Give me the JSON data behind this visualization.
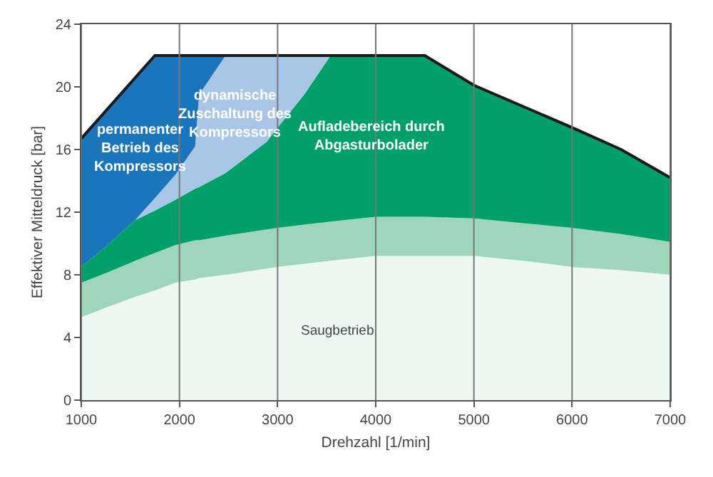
{
  "chart_data": {
    "type": "area",
    "stacked": true,
    "xlabel": "Drehzahl [1/min]",
    "ylabel": "Effektiver Mitteldruck [bar]",
    "xlim": [
      1000,
      7000
    ],
    "xticks": [
      1000,
      2000,
      3000,
      4000,
      5000,
      6000,
      7000
    ],
    "ylim": [
      0,
      24
    ],
    "yticks": [
      0,
      4,
      8,
      12,
      16,
      20,
      24
    ],
    "grid": "x",
    "legend": false,
    "x": [
      1000,
      1250,
      1550,
      1750,
      1960,
      2160,
      2200,
      2470,
      2890,
      3000,
      3270,
      3540,
      4000,
      4500,
      5000,
      5500,
      6000,
      6500,
      7000
    ],
    "series": [
      {
        "name": "Saugbetrieb",
        "color": "#eef8f3",
        "values": [
          5.3,
          5.9,
          6.6,
          7.0,
          7.5,
          7.7,
          7.8,
          8.0,
          8.4,
          8.5,
          8.7,
          8.9,
          9.2,
          9.2,
          9.2,
          8.9,
          8.5,
          8.3,
          8.0
        ]
      },
      {
        "color": "#9fd6bb",
        "values": [
          2.2,
          2.2,
          2.3,
          2.4,
          2.4,
          2.5,
          2.4,
          2.5,
          2.5,
          2.5,
          2.5,
          2.5,
          2.5,
          2.5,
          2.4,
          2.4,
          2.5,
          2.3,
          2.1
        ]
      },
      {
        "name": "Aufladebereich durch\nAbgasturbolader",
        "color": "#00a06a",
        "values": [
          1.0,
          1.7,
          2.6,
          2.7,
          2.9,
          3.3,
          3.4,
          4.0,
          5.6,
          6.4,
          8.3,
          10.6,
          10.3,
          10.3,
          8.5,
          7.5,
          6.4,
          5.4,
          4.1
        ]
      },
      {
        "name": "dynamische\nZuschaltung des\nKompressors",
        "color": "#a9c6e6",
        "values": [
          null,
          null,
          0,
          0.8,
          1.6,
          2.7,
          5.9,
          7.5,
          5.5,
          4.6,
          2.5,
          0,
          null,
          null,
          null,
          null,
          null,
          null,
          null
        ]
      },
      {
        "name": "permanenter\nBetrieb des\nKompressors",
        "color": "#1a75bb",
        "values": [
          8.2,
          8.6,
          9.1,
          9.1,
          7.6,
          5.8,
          2.5,
          0,
          null,
          null,
          null,
          null,
          null,
          null,
          null,
          null,
          null,
          null,
          null
        ]
      },
      {
        "type": "line",
        "color": "#1a1a1a",
        "x": [
          1000,
          1750,
          4500,
          5000,
          6000,
          6500,
          7000
        ],
        "values": [
          16.7,
          22,
          22,
          20.1,
          17.4,
          16,
          14.2
        ]
      }
    ]
  }
}
